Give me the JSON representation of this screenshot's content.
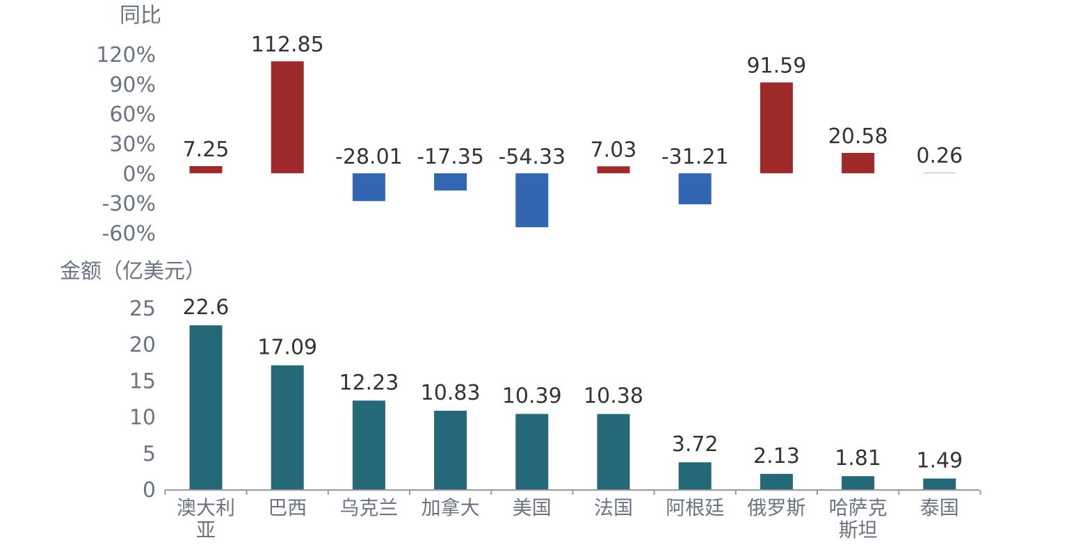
{
  "chart_data": [
    {
      "type": "bar",
      "ylabel": "同比",
      "categories": [
        "澳大利亚",
        "巴西",
        "乌克兰",
        "加拿大",
        "美国",
        "法国",
        "阿根廷",
        "俄罗斯",
        "哈萨克斯坦",
        "泰国"
      ],
      "values": [
        7.25,
        112.85,
        -28.01,
        -17.35,
        -54.33,
        7.03,
        -31.21,
        91.59,
        20.58,
        0.26
      ],
      "data_labels": [
        "7.25",
        "112.85",
        "-28.01",
        "-17.35",
        "-54.33",
        "7.03",
        "-31.21",
        "91.59",
        "20.58",
        "0.26"
      ],
      "ylim": [
        -60,
        120
      ],
      "ytick_values": [
        120,
        90,
        60,
        30,
        0,
        -30,
        -60
      ],
      "yticks": [
        "120%",
        "90%",
        "60%",
        "30%",
        "0%",
        "-30%",
        "-60%"
      ],
      "colors": {
        "positive": "#9e2a2b",
        "negative": "#3366b0"
      }
    },
    {
      "type": "bar",
      "ylabel": "金额（亿美元）",
      "categories": [
        "澳大利亚",
        "巴西",
        "乌克兰",
        "加拿大",
        "美国",
        "法国",
        "阿根廷",
        "俄罗斯",
        "哈萨克斯坦",
        "泰国"
      ],
      "category_labels": [
        [
          "澳大利",
          "亚"
        ],
        [
          "巴西"
        ],
        [
          "乌克兰"
        ],
        [
          "加拿大"
        ],
        [
          "美国"
        ],
        [
          "法国"
        ],
        [
          "阿根廷"
        ],
        [
          "俄罗斯"
        ],
        [
          "哈萨克",
          "斯坦"
        ],
        [
          "泰国"
        ]
      ],
      "values": [
        22.6,
        17.09,
        12.23,
        10.83,
        10.39,
        10.38,
        3.72,
        2.13,
        1.81,
        1.49
      ],
      "data_labels": [
        "22.6",
        "17.09",
        "12.23",
        "10.83",
        "10.39",
        "10.38",
        "3.72",
        "2.13",
        "1.81",
        "1.49"
      ],
      "ylim": [
        0,
        25
      ],
      "ytick_values": [
        25,
        20,
        15,
        10,
        5,
        0
      ],
      "yticks": [
        "25",
        "20",
        "15",
        "10",
        "5",
        "0"
      ],
      "colors": {
        "bar": "#256878",
        "axis": "#999999"
      }
    }
  ]
}
